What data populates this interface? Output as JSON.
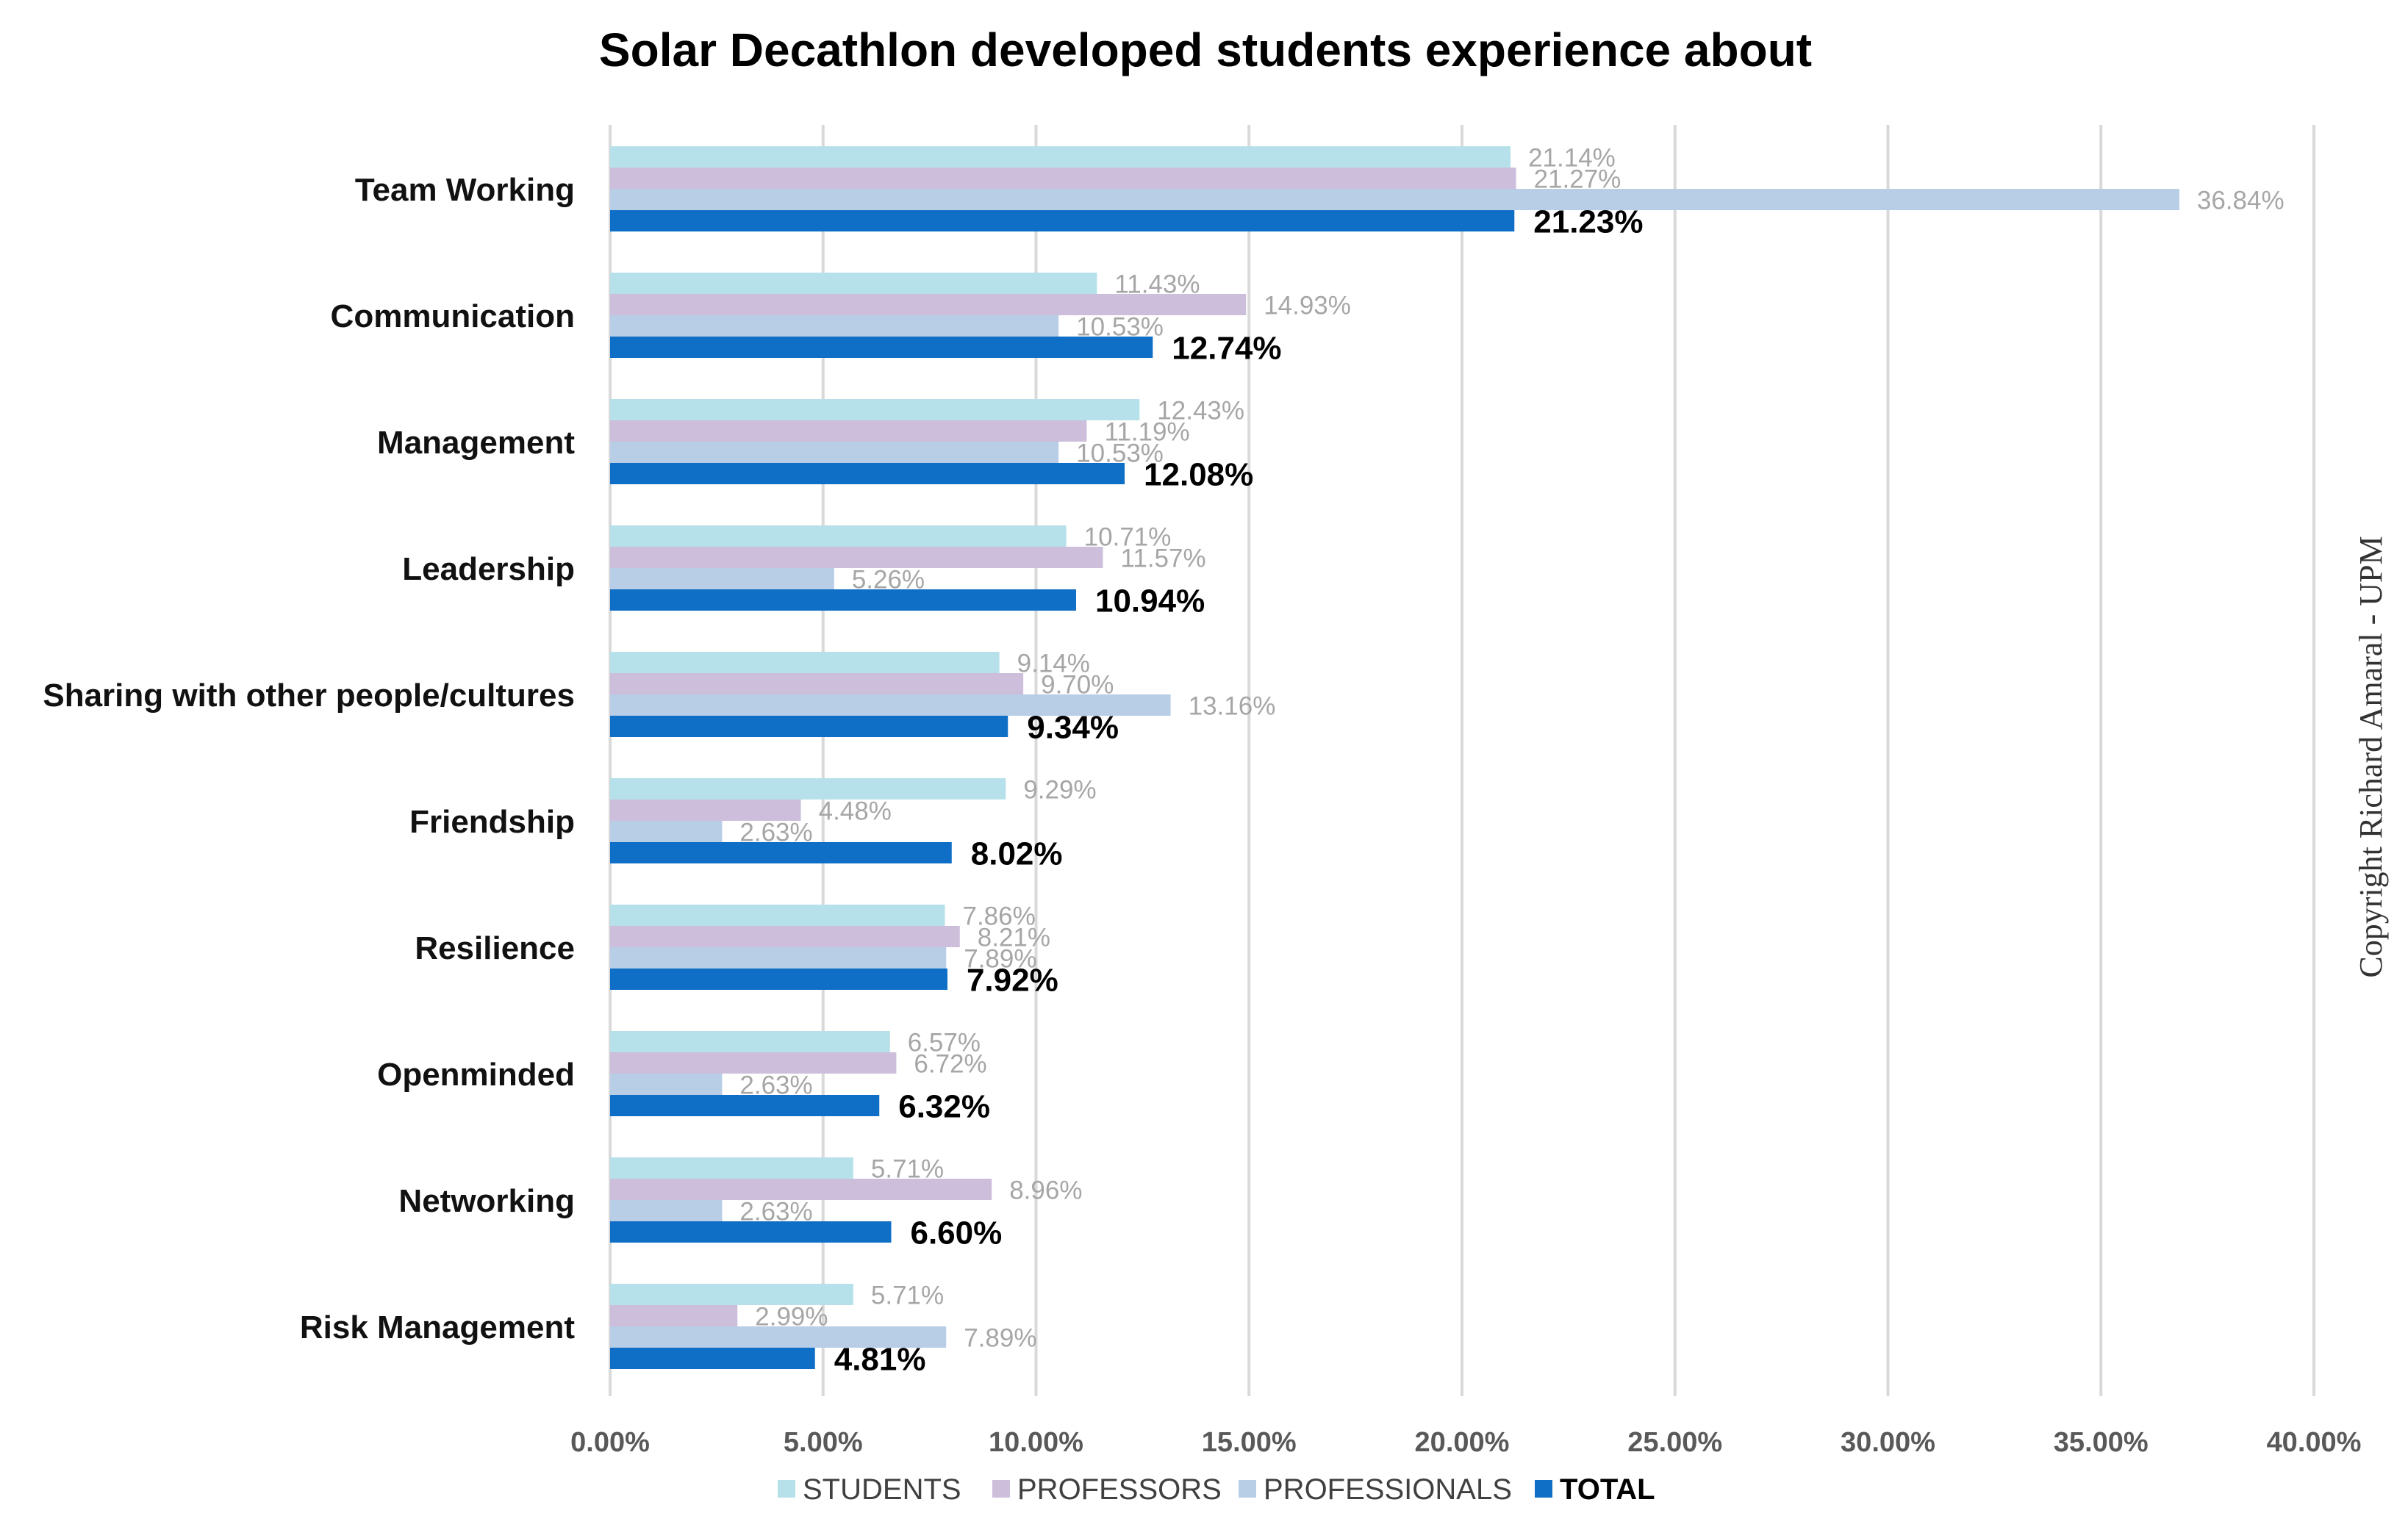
{
  "chart_data": {
    "type": "bar",
    "orientation": "horizontal",
    "title": "Solar Decathlon developed students experience about",
    "xlabel": "",
    "ylabel": "",
    "xlim": [
      0,
      40
    ],
    "grid": true,
    "x_ticks": [
      0,
      5,
      10,
      15,
      20,
      25,
      30,
      35,
      40
    ],
    "x_tick_labels": [
      "0.00%",
      "5.00%",
      "10.00%",
      "15.00%",
      "20.00%",
      "25.00%",
      "30.00%",
      "35.00%",
      "40.00%"
    ],
    "categories": [
      "Team Working",
      "Communication",
      "Management",
      "Leadership",
      "Sharing with other people/cultures",
      "Friendship",
      "Resilience",
      "Openminded",
      "Networking",
      "Risk Management"
    ],
    "legend_position": "bottom",
    "series": [
      {
        "name": "STUDENTS",
        "color": "#b7e1ea",
        "values": [
          21.14,
          11.43,
          12.43,
          10.71,
          9.14,
          9.29,
          7.86,
          6.57,
          5.71,
          5.71
        ],
        "labels": [
          "21.14%",
          "11.43%",
          "12.43%",
          "10.71%",
          "9.14%",
          "9.29%",
          "7.86%",
          "6.57%",
          "5.71%",
          "5.71%"
        ]
      },
      {
        "name": "PROFESSORS",
        "color": "#cdbfdc",
        "values": [
          21.27,
          14.93,
          11.19,
          11.57,
          9.7,
          4.48,
          8.21,
          6.72,
          8.96,
          2.99
        ],
        "labels": [
          "21.27%",
          "14.93%",
          "11.19%",
          "11.57%",
          "9.70%",
          "4.48%",
          "8.21%",
          "6.72%",
          "8.96%",
          "2.99%"
        ]
      },
      {
        "name": "PROFESSIONALS",
        "color": "#b8cde6",
        "values": [
          36.84,
          10.53,
          10.53,
          5.26,
          13.16,
          2.63,
          7.89,
          2.63,
          2.63,
          7.89
        ],
        "labels": [
          "36.84%",
          "10.53%",
          "10.53%",
          "5.26%",
          "13.16%",
          "2.63%",
          "7.89%",
          "2.63%",
          "2.63%",
          "7.89%"
        ]
      },
      {
        "name": "TOTAL",
        "color": "#0f6fc6",
        "values": [
          21.23,
          12.74,
          12.08,
          10.94,
          9.34,
          8.02,
          7.92,
          6.32,
          6.6,
          4.81
        ],
        "labels": [
          "21.23%",
          "12.74%",
          "12.08%",
          "10.94%",
          "9.34%",
          "8.02%",
          "7.92%",
          "6.32%",
          "6.60%",
          "4.81%"
        ]
      }
    ]
  },
  "copyright": "Copyright Richard Amaral - UPM"
}
